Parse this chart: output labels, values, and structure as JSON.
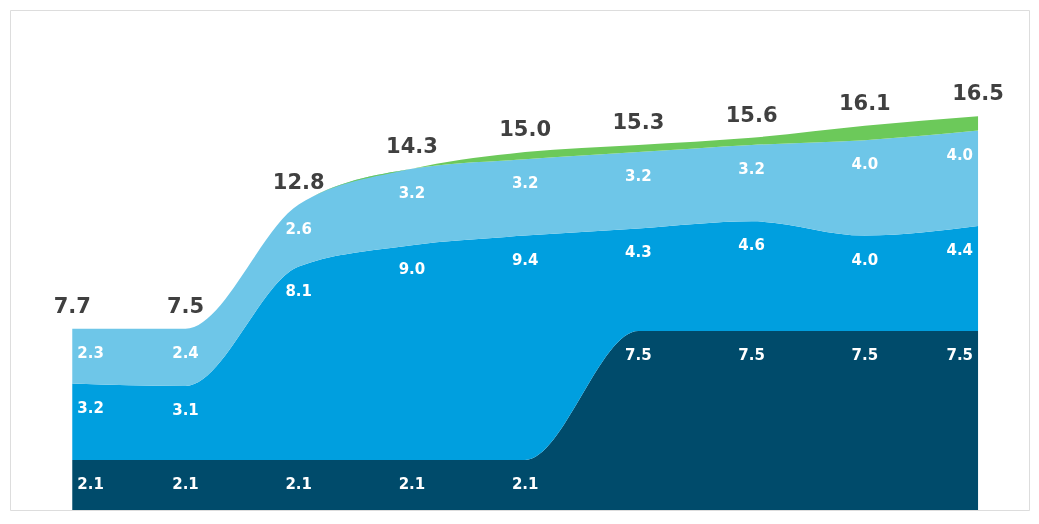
{
  "chart_data": {
    "type": "area",
    "stacked": true,
    "categories": [
      null,
      null,
      null,
      null,
      null,
      null,
      null,
      null,
      null
    ],
    "series": [
      {
        "color": "#004b6b",
        "values": [
          2.1,
          2.1,
          2.1,
          2.1,
          2.1,
          7.5,
          7.5,
          7.5,
          7.5
        ],
        "value_labels": [
          "2.1",
          "2.1",
          "2.1",
          "2.1",
          "2.1",
          "7.5",
          "7.5",
          "7.5",
          "7.5"
        ]
      },
      {
        "color": "#009fdf",
        "values": [
          3.2,
          3.1,
          8.1,
          9.0,
          9.4,
          4.3,
          4.6,
          4.0,
          4.4
        ],
        "value_labels": [
          "3.2",
          "3.1",
          "8.1",
          "9.0",
          "9.4",
          "4.3",
          "4.6",
          "4.0",
          "4.4"
        ]
      },
      {
        "color": "#6ec6e8",
        "values": [
          2.3,
          2.4,
          2.6,
          3.2,
          3.2,
          3.2,
          3.2,
          4.0,
          4.0
        ],
        "value_labels": [
          "2.3",
          "2.4",
          "2.6",
          "3.2",
          "3.2",
          "3.2",
          "3.2",
          "4.0",
          "4.0"
        ]
      },
      {
        "color": "#6cc95a",
        "values": [
          0,
          0,
          0,
          0,
          0.3,
          0.3,
          0.3,
          0.6,
          0.6
        ]
      }
    ],
    "totals": [
      "7.7",
      "7.5",
      "12.8",
      "14.3",
      "15.0",
      "15.3",
      "15.6",
      "16.1",
      "16.5"
    ],
    "tick_labels": false
  }
}
